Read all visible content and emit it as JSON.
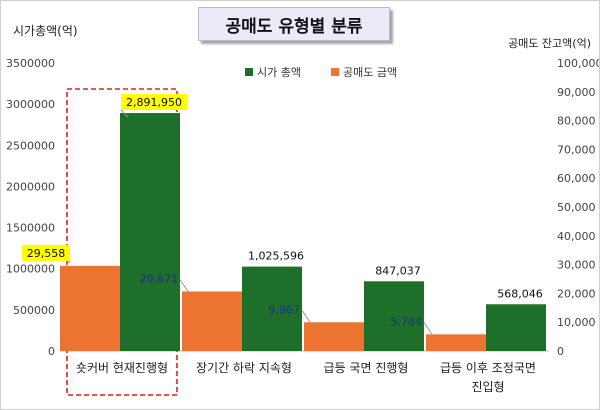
{
  "chart_data": {
    "type": "bar",
    "title": "공매도 유형별 분류",
    "ylabel_left": "시가총액(억)",
    "ylabel_right": "공매도 잔고액(억)",
    "categories": [
      "숏커버 현재진행형",
      "장기간 하락 지속형",
      "급등 국면 진행형",
      "급등 이후 조정국면 진입형"
    ],
    "category_lines": [
      [
        "숏커버 현재진행형"
      ],
      [
        "장기간 하락 지속형"
      ],
      [
        "급등 국면 진행형"
      ],
      [
        "급등 이후 조정국면",
        "진입형"
      ]
    ],
    "series": [
      {
        "name": "시가 총액",
        "axis": "left",
        "color": "#1e6f2a",
        "values": [
          2891950,
          1025596,
          847037,
          568046
        ],
        "labels": [
          "2,891,950",
          "1,025,596",
          "847,037",
          "568,046"
        ]
      },
      {
        "name": "공매도 금액",
        "axis": "right",
        "color": "#ed7330",
        "values": [
          29558,
          20671,
          9967,
          5784
        ],
        "labels": [
          "29,558",
          "20,671",
          "9,967",
          "5,784"
        ]
      }
    ],
    "ylim_left": [
      0,
      3500000
    ],
    "ylim_right": [
      0,
      100000
    ],
    "left_ticks": [
      "0",
      "500000",
      "1000000",
      "1500000",
      "2000000",
      "2500000",
      "3000000",
      "3500000"
    ],
    "right_ticks": [
      "0",
      "10,000",
      "20,000",
      "30,000",
      "40,000",
      "50,000",
      "60,000",
      "70,000",
      "80,000",
      "90,000",
      "100,000"
    ],
    "legend_position": "top-center",
    "highlight_category": 0,
    "highlight_label_color": "#ffff00",
    "label_text_color": "#1f2d8c",
    "grid": false
  }
}
